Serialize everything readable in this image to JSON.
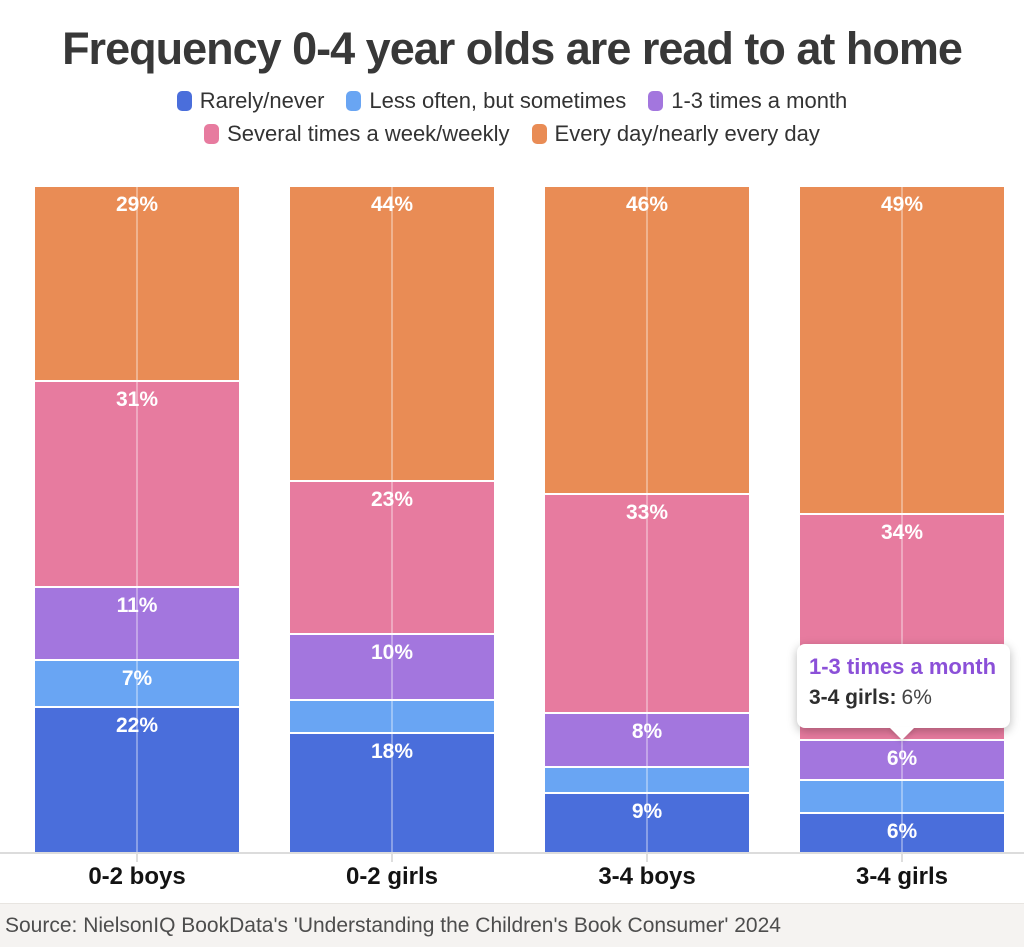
{
  "title": "Frequency 0-4 year olds are read to at home",
  "source": "Source: NielsonIQ BookData's 'Understanding the Children's Book Consumer' 2024",
  "colors": {
    "background": "#ffffff",
    "title_text": "#383838",
    "legend_text": "#333333",
    "axis_line": "#dcdcdc",
    "category_label_text": "#131313",
    "segment_label_text": "#ffffff",
    "source_bar_background": "#f5f3f1",
    "source_text": "#4d4d4d",
    "tooltip_accent": "#8B50D8"
  },
  "legend": {
    "position": "top",
    "rows": [
      [
        0,
        1,
        2
      ],
      [
        3,
        4
      ]
    ]
  },
  "tooltip": {
    "series_label": "1-3 times a month",
    "category_text": "3-4 girls:",
    "value_text": "6%",
    "accent_color": "#8B50D8"
  },
  "chart_data": {
    "type": "bar",
    "stacked": true,
    "orientation": "vertical",
    "title": "Frequency 0-4 year olds are read to at home",
    "xlabel": "",
    "ylabel": "",
    "ylim": [
      0,
      100
    ],
    "value_suffix": "%",
    "grid": "center-gridline-per-bar",
    "legend_position": "top",
    "categories": [
      "0-2 boys",
      "0-2 girls",
      "3-4 boys",
      "3-4 girls"
    ],
    "series": [
      {
        "name": "Rarely/never",
        "color": "#4A6EDB",
        "values": [
          22,
          18,
          9,
          6
        ],
        "labels": [
          "22%",
          "18%",
          "9%",
          "6%"
        ]
      },
      {
        "name": "Less often, but sometimes",
        "color": "#69A5F3",
        "values": [
          7,
          5,
          4,
          5
        ],
        "labels": [
          "7%",
          "",
          "",
          ""
        ]
      },
      {
        "name": "1-3 times a month",
        "color": "#A376DE",
        "values": [
          11,
          10,
          8,
          6
        ],
        "labels": [
          "11%",
          "10%",
          "8%",
          "6%"
        ]
      },
      {
        "name": "Several times a week/weekly",
        "color": "#E77B9F",
        "values": [
          31,
          23,
          33,
          34
        ],
        "labels": [
          "31%",
          "23%",
          "33%",
          "34%"
        ]
      },
      {
        "name": "Every day/nearly every day",
        "color": "#E98C55",
        "values": [
          29,
          44,
          46,
          49
        ],
        "labels": [
          "29%",
          "44%",
          "46%",
          "49%"
        ]
      }
    ]
  }
}
